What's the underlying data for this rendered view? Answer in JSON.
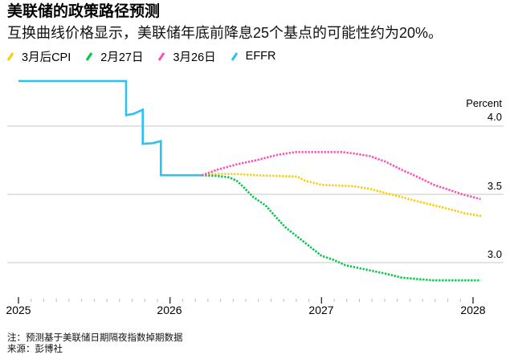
{
  "header": {
    "title": "美联储的政策路径预测",
    "subtitle": "互换曲线价格显示，美联储年底前降息25个基点的可能性约为20%。"
  },
  "legend": [
    {
      "label": "3月后CPI",
      "color": "#ffcc00",
      "icon": "slash-swatch-icon"
    },
    {
      "label": "2月27日",
      "color": "#00c846",
      "icon": "slash-swatch-icon"
    },
    {
      "label": "3月26日",
      "color": "#ff4fb4",
      "icon": "slash-swatch-icon"
    },
    {
      "label": "EFFR",
      "color": "#2bc2f4",
      "icon": "slash-swatch-icon"
    }
  ],
  "axis": {
    "y_unit": "Percent",
    "y_ticks": [
      {
        "label": "4.0",
        "value": 4.0
      },
      {
        "label": "3.5",
        "value": 3.5
      },
      {
        "label": "3.0",
        "value": 3.0
      }
    ],
    "x_ticks": [
      {
        "label": "2025",
        "value": 2025
      },
      {
        "label": "2026",
        "value": 2026
      },
      {
        "label": "2027",
        "value": 2027
      },
      {
        "label": "2028",
        "value": 2028
      }
    ]
  },
  "footer": {
    "note": "注：预测基于美联储日期隔夜指数掉期数据",
    "source": "来源：彭博社"
  },
  "chart_data": {
    "type": "line",
    "title": "美联储的政策路径预测",
    "subtitle": "互换曲线价格显示，美联储年底前降息25个基点的可能性约为20%。",
    "xlabel": "",
    "ylabel": "Percent",
    "xlim": [
      2025.0,
      2028.1
    ],
    "ylim": [
      2.8,
      4.4
    ],
    "grid": {
      "y": true,
      "x": false
    },
    "legend_position": "top-left",
    "series": [
      {
        "name": "EFFR",
        "color": "#2bc2f4",
        "style": "solid",
        "points": [
          [
            2025.0,
            4.33
          ],
          [
            2025.71,
            4.33
          ],
          [
            2025.71,
            4.08
          ],
          [
            2025.76,
            4.09
          ],
          [
            2025.8,
            4.11
          ],
          [
            2025.82,
            4.12
          ],
          [
            2025.82,
            3.87
          ],
          [
            2025.885,
            3.875
          ],
          [
            2025.94,
            3.89
          ],
          [
            2025.94,
            3.64
          ],
          [
            2026.21,
            3.64
          ]
        ]
      },
      {
        "name": "3月后CPI",
        "color": "#ffcc00",
        "style": "dotted",
        "points": [
          [
            2026.21,
            3.64
          ],
          [
            2026.31,
            3.65
          ],
          [
            2026.42,
            3.65
          ],
          [
            2026.57,
            3.64
          ],
          [
            2026.71,
            3.635
          ],
          [
            2026.84,
            3.63
          ],
          [
            2026.89,
            3.6
          ],
          [
            2027.0,
            3.57
          ],
          [
            2027.1,
            3.565
          ],
          [
            2027.21,
            3.56
          ],
          [
            2027.32,
            3.54
          ],
          [
            2027.42,
            3.51
          ],
          [
            2027.53,
            3.48
          ],
          [
            2027.63,
            3.45
          ],
          [
            2027.74,
            3.42
          ],
          [
            2027.85,
            3.39
          ],
          [
            2027.95,
            3.36
          ],
          [
            2028.06,
            3.34
          ]
        ]
      },
      {
        "name": "2月27日",
        "color": "#00c846",
        "style": "dotted",
        "points": [
          [
            2026.21,
            3.64
          ],
          [
            2026.31,
            3.635
          ],
          [
            2026.39,
            3.625
          ],
          [
            2026.44,
            3.6
          ],
          [
            2026.47,
            3.57
          ],
          [
            2026.55,
            3.48
          ],
          [
            2026.63,
            3.42
          ],
          [
            2026.71,
            3.32
          ],
          [
            2026.76,
            3.26
          ],
          [
            2026.84,
            3.19
          ],
          [
            2026.92,
            3.12
          ],
          [
            2027.0,
            3.05
          ],
          [
            2027.08,
            3.02
          ],
          [
            2027.16,
            2.98
          ],
          [
            2027.29,
            2.95
          ],
          [
            2027.42,
            2.92
          ],
          [
            2027.53,
            2.89
          ],
          [
            2027.63,
            2.88
          ],
          [
            2027.74,
            2.87
          ],
          [
            2027.85,
            2.87
          ],
          [
            2028.05,
            2.87
          ]
        ]
      },
      {
        "name": "3月26日",
        "color": "#ff4fb4",
        "style": "dotted",
        "points": [
          [
            2026.21,
            3.64
          ],
          [
            2026.31,
            3.68
          ],
          [
            2026.44,
            3.72
          ],
          [
            2026.57,
            3.75
          ],
          [
            2026.71,
            3.79
          ],
          [
            2026.83,
            3.81
          ],
          [
            2027.0,
            3.81
          ],
          [
            2027.13,
            3.81
          ],
          [
            2027.21,
            3.8
          ],
          [
            2027.32,
            3.78
          ],
          [
            2027.42,
            3.74
          ],
          [
            2027.53,
            3.68
          ],
          [
            2027.63,
            3.63
          ],
          [
            2027.74,
            3.57
          ],
          [
            2027.85,
            3.53
          ],
          [
            2027.93,
            3.5
          ],
          [
            2028.0,
            3.48
          ],
          [
            2028.05,
            3.465
          ]
        ]
      }
    ]
  }
}
